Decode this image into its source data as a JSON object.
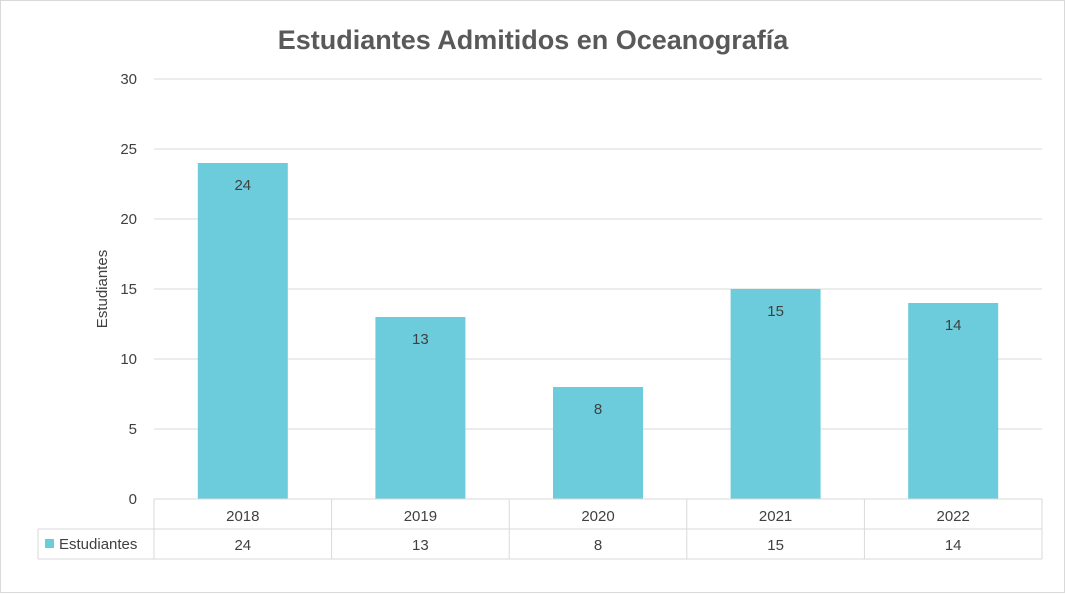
{
  "chart_data": {
    "type": "bar",
    "title": "Estudiantes Admitidos en Oceanografía",
    "xlabel": "",
    "ylabel": "Estudiantes",
    "categories": [
      "2018",
      "2019",
      "2020",
      "2021",
      "2022"
    ],
    "series": [
      {
        "name": "Estudiantes",
        "values": [
          24,
          13,
          8,
          15,
          14
        ]
      }
    ],
    "ylim": [
      0,
      30
    ],
    "yticks": [
      0,
      5,
      10,
      15,
      20,
      25,
      30
    ],
    "grid": true,
    "data_table": true,
    "data_labels": true,
    "colors": {
      "bar": "#6CCCDB",
      "gridline": "#d9d9d9",
      "text": "#404040",
      "title": "#595959"
    }
  }
}
